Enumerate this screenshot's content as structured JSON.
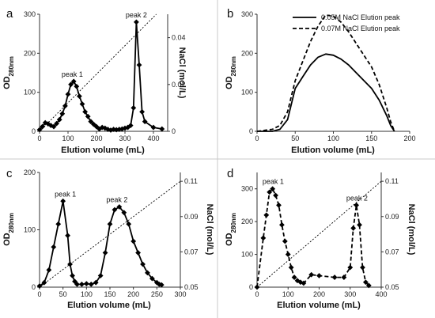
{
  "chart_data": [
    {
      "panel_label": "a",
      "type": "line",
      "xlabel": "Elution volume (mL)",
      "ylabel": "OD",
      "ylabel_sub": "280nm",
      "y2label": "NaCl (mol/L)",
      "xlim": [
        0,
        450
      ],
      "ylim": [
        0,
        300
      ],
      "y2lim": [
        0,
        0.05
      ],
      "xticks": [
        "0",
        "100",
        "200",
        "300",
        "400"
      ],
      "yticks": [
        "0",
        "100",
        "200",
        "300"
      ],
      "y2ticks": [
        "0",
        "0.02",
        "0.04"
      ],
      "x": [
        0,
        10,
        20,
        30,
        40,
        50,
        60,
        70,
        80,
        90,
        100,
        110,
        120,
        130,
        140,
        150,
        160,
        170,
        180,
        190,
        200,
        210,
        220,
        230,
        240,
        250,
        260,
        270,
        280,
        290,
        300,
        310,
        320,
        330,
        340,
        350,
        360,
        370,
        400,
        430
      ],
      "series": [
        {
          "values": [
            4,
            12,
            22,
            19,
            15,
            12,
            20,
            30,
            45,
            65,
            95,
            120,
            128,
            115,
            90,
            70,
            50,
            38,
            25,
            18,
            12,
            6,
            10,
            8,
            5,
            3,
            5,
            4,
            5,
            6,
            8,
            10,
            15,
            60,
            280,
            170,
            50,
            25,
            10,
            6
          ]
        },
        {
          "axis": "y2",
          "style": "dashed",
          "x": [
            0,
            410
          ],
          "values": [
            0,
            0.05
          ]
        }
      ],
      "annotations": [
        {
          "text": "peak 1",
          "x": 115,
          "y": 128
        },
        {
          "text": "peak 2",
          "x": 340,
          "y": 280
        }
      ]
    },
    {
      "panel_label": "b",
      "type": "line",
      "xlabel": "Elution volume (mL)",
      "ylabel": "OD",
      "ylabel_sub": "280nm",
      "xlim": [
        0,
        200
      ],
      "ylim": [
        0,
        300
      ],
      "xticks": [
        "0",
        "50",
        "100",
        "150",
        "200"
      ],
      "yticks": [
        "0",
        "100",
        "200",
        "300"
      ],
      "legend": "top-right",
      "x": [
        0,
        20,
        30,
        40,
        45,
        50,
        60,
        70,
        80,
        90,
        100,
        110,
        120,
        130,
        140,
        150,
        160,
        170,
        175,
        180
      ],
      "series": [
        {
          "name": "0.05M NaCl Elution peak",
          "style": "solid",
          "values": [
            0,
            0,
            5,
            30,
            70,
            110,
            140,
            170,
            190,
            198,
            195,
            185,
            170,
            150,
            130,
            110,
            80,
            40,
            15,
            0
          ]
        },
        {
          "name": "0.07M NaCl Elution peak",
          "style": "dashed",
          "values": [
            0,
            5,
            15,
            50,
            90,
            130,
            180,
            230,
            270,
            298,
            295,
            280,
            255,
            225,
            195,
            165,
            120,
            60,
            25,
            0
          ]
        }
      ]
    },
    {
      "panel_label": "c",
      "type": "line",
      "xlabel": "Elution volume (mL)",
      "ylabel": "OD",
      "ylabel_sub": "280nm",
      "y2label": "NaCl (mol/L)",
      "xlim": [
        0,
        300
      ],
      "ylim": [
        0,
        200
      ],
      "y2lim": [
        0.05,
        0.115
      ],
      "xticks": [
        "0",
        "50",
        "100",
        "150",
        "200",
        "250",
        "300"
      ],
      "yticks": [
        "0",
        "100",
        "200"
      ],
      "y2ticks": [
        "0.05",
        "0.07",
        "0.09",
        "0.11"
      ],
      "x": [
        0,
        10,
        20,
        30,
        40,
        50,
        60,
        65,
        70,
        75,
        80,
        90,
        100,
        110,
        120,
        130,
        140,
        150,
        160,
        170,
        180,
        190,
        200,
        210,
        220,
        230,
        240,
        250,
        255,
        260
      ],
      "series": [
        {
          "values": [
            2,
            8,
            30,
            70,
            110,
            150,
            90,
            40,
            20,
            10,
            5,
            5,
            6,
            5,
            8,
            20,
            60,
            110,
            135,
            140,
            130,
            110,
            80,
            60,
            40,
            25,
            15,
            8,
            5,
            4
          ]
        },
        {
          "axis": "y2",
          "style": "dashed",
          "x": [
            0,
            300
          ],
          "values": [
            0.05,
            0.11
          ]
        }
      ],
      "annotations": [
        {
          "text": "peak 1",
          "x": 55,
          "y": 150
        },
        {
          "text": "peak 2",
          "x": 165,
          "y": 140
        }
      ]
    },
    {
      "panel_label": "d",
      "type": "line",
      "xlabel": "Elution volume (mL)",
      "ylabel": "OD",
      "ylabel_sub": "280nm",
      "y2label": "NaCl (mol/L)",
      "xlim": [
        0,
        400
      ],
      "ylim": [
        0,
        350
      ],
      "y2lim": [
        0.05,
        0.115
      ],
      "xticks": [
        "0",
        "100",
        "200",
        "300",
        "400"
      ],
      "yticks": [
        "0",
        "100",
        "200",
        "300"
      ],
      "y2ticks": [
        "0.05",
        "0.07",
        "0.09",
        "0.11"
      ],
      "x": [
        0,
        20,
        30,
        40,
        50,
        60,
        70,
        80,
        90,
        100,
        110,
        120,
        130,
        140,
        150,
        175,
        200,
        250,
        280,
        300,
        310,
        320,
        330,
        340,
        350,
        360
      ],
      "series": [
        {
          "style": "dashed",
          "values": [
            0,
            150,
            220,
            290,
            300,
            280,
            250,
            190,
            140,
            100,
            60,
            30,
            20,
            15,
            12,
            38,
            35,
            30,
            30,
            60,
            180,
            250,
            190,
            60,
            15,
            5
          ]
        },
        {
          "axis": "y2",
          "style": "dashed",
          "x": [
            0,
            400
          ],
          "values": [
            0.05,
            0.11
          ]
        }
      ],
      "annotations": [
        {
          "text": "peak 1",
          "x": 52,
          "y": 300
        },
        {
          "text": "peak 2",
          "x": 322,
          "y": 250
        }
      ]
    }
  ]
}
